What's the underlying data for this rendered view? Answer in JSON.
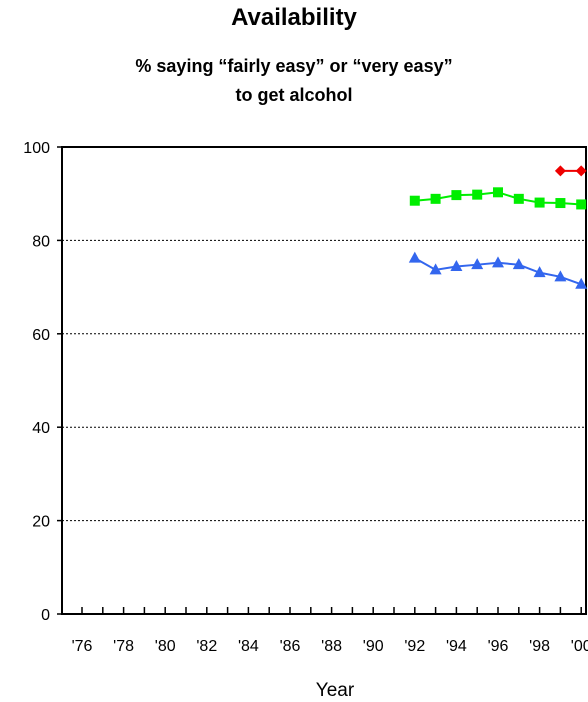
{
  "chart_data": {
    "type": "line",
    "title": "Availability",
    "subtitle_line1": "% saying “fairly easy” or “very easy”",
    "subtitle_line2": "to get alcohol",
    "xlabel": "Year",
    "ylabel": "",
    "ylim": [
      0,
      100
    ],
    "yticks": [
      0,
      20,
      40,
      60,
      80,
      100
    ],
    "xlim": [
      1975,
      2000
    ],
    "xtick_labels": [
      "'76",
      "'78",
      "'80",
      "'82",
      "'84",
      "'86",
      "'88",
      "'90",
      "'92",
      "'94",
      "'96",
      "'98",
      "'00"
    ],
    "grid": "horizontal dashed",
    "legend": "none",
    "series": [
      {
        "color": "#00ee00",
        "marker": "square",
        "x": [
          1992,
          1993,
          1994,
          1995,
          1996,
          1997,
          1998,
          1999,
          2000
        ],
        "values": [
          88.5,
          88.9,
          89.7,
          89.8,
          90.3,
          88.9,
          88.1,
          88.0,
          87.7
        ]
      },
      {
        "color": "#3366ee",
        "marker": "triangle",
        "x": [
          1992,
          1993,
          1994,
          1995,
          1996,
          1997,
          1998,
          1999,
          2000
        ],
        "values": [
          76.2,
          73.7,
          74.4,
          74.8,
          75.2,
          74.8,
          73.1,
          72.2,
          70.6
        ]
      },
      {
        "color": "#ee0000",
        "marker": "diamond",
        "x": [
          1999,
          2000
        ],
        "values": [
          94.9,
          94.9
        ]
      }
    ]
  }
}
